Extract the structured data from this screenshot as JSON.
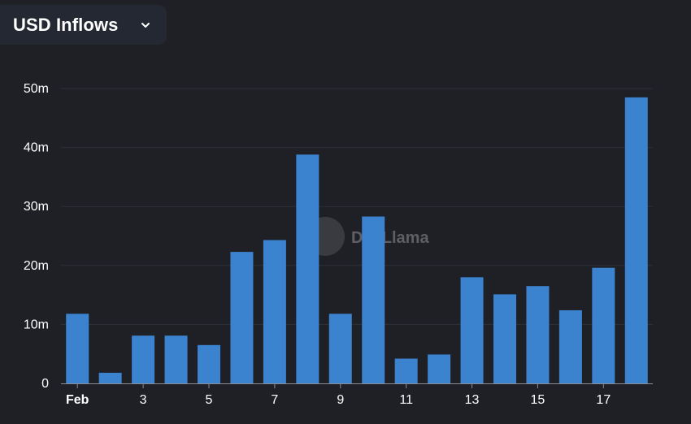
{
  "header": {
    "metric_label": "USD Inflows",
    "chevron_icon": "chevron-down-icon"
  },
  "watermark": {
    "text": "DefiLlama",
    "icon": "llama-logo-icon"
  },
  "colors": {
    "background": "#1f2026",
    "bar": "#3b82cf",
    "grid": "#2e3038",
    "axis": "#8a8d96",
    "text": "#ffffff",
    "select_bg": "#232832"
  },
  "chart_data": {
    "type": "bar",
    "title": "",
    "xlabel": "",
    "ylabel": "",
    "categories": [
      "Feb 1",
      "Feb 2",
      "Feb 3",
      "Feb 4",
      "Feb 5",
      "Feb 6",
      "Feb 7",
      "Feb 8",
      "Feb 9",
      "Feb 10",
      "Feb 11",
      "Feb 12",
      "Feb 13",
      "Feb 14",
      "Feb 15",
      "Feb 16",
      "Feb 17",
      "Feb 18"
    ],
    "x_tick_labels": [
      {
        "index": 0,
        "label": "Feb",
        "bold": true
      },
      {
        "index": 2,
        "label": "3"
      },
      {
        "index": 4,
        "label": "5"
      },
      {
        "index": 6,
        "label": "7"
      },
      {
        "index": 8,
        "label": "9"
      },
      {
        "index": 10,
        "label": "11"
      },
      {
        "index": 12,
        "label": "13"
      },
      {
        "index": 14,
        "label": "15"
      },
      {
        "index": 16,
        "label": "17"
      }
    ],
    "values": [
      11.8,
      1.8,
      8.1,
      8.1,
      6.5,
      22.3,
      24.3,
      38.8,
      11.8,
      28.3,
      4.2,
      4.9,
      18.0,
      15.1,
      16.5,
      12.4,
      19.6,
      48.5
    ],
    "unit": "m",
    "ylim": [
      0,
      50
    ],
    "y_ticks": [
      0,
      10,
      20,
      30,
      40,
      50
    ],
    "y_tick_labels": [
      "0",
      "10m",
      "20m",
      "30m",
      "40m",
      "50m"
    ],
    "grid": true,
    "legend": "none"
  }
}
